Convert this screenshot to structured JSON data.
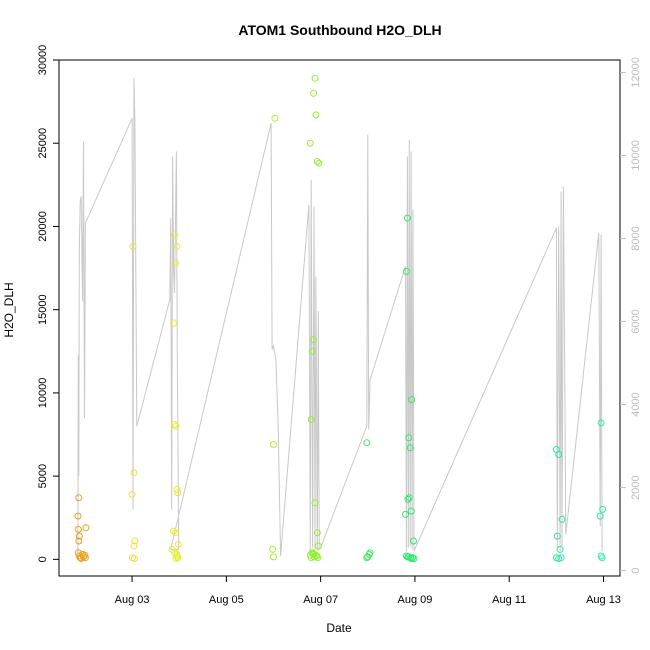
{
  "chart_data": {
    "type": "scatter",
    "title": "ATOM1 Southbound H2O_DLH",
    "xlabel": "Date",
    "ylabel": "H2O_DLH",
    "x_unit": "days since Aug 01",
    "xlim": [
      1.45,
      13.35
    ],
    "ylim": [
      -1000,
      30000
    ],
    "y2lim": [
      -130,
      12300
    ],
    "x_ticks": [
      {
        "value": 3,
        "label": "Aug 03"
      },
      {
        "value": 5,
        "label": "Aug 05"
      },
      {
        "value": 7,
        "label": "Aug 07"
      },
      {
        "value": 9,
        "label": "Aug 09"
      },
      {
        "value": 11,
        "label": "Aug 11"
      },
      {
        "value": 13,
        "label": "Aug 13"
      }
    ],
    "y_ticks": [
      0,
      5000,
      10000,
      15000,
      20000,
      25000,
      30000
    ],
    "y2_ticks": [
      0,
      2000,
      4000,
      6000,
      8000,
      10000,
      12000
    ],
    "colors": {
      "altitude_line": "#c8c8c8",
      "right_axis": "#bdbdbd"
    },
    "series": [
      {
        "color": "#e8a020",
        "points": [
          [
            1.87,
            3700
          ],
          [
            1.85,
            2600
          ],
          [
            1.86,
            1800
          ],
          [
            1.88,
            1400
          ],
          [
            1.87,
            1100
          ],
          [
            1.86,
            400
          ],
          [
            1.95,
            300
          ],
          [
            1.88,
            200
          ],
          [
            1.9,
            100
          ],
          [
            1.92,
            50
          ],
          [
            1.97,
            150
          ],
          [
            2.02,
            1900
          ],
          [
            2.0,
            250
          ],
          [
            2.01,
            100
          ]
        ]
      },
      {
        "color": "#f0e040",
        "points": [
          [
            3.02,
            18800
          ],
          [
            3.04,
            5200
          ],
          [
            3.0,
            3900
          ],
          [
            3.06,
            1100
          ],
          [
            3.04,
            800
          ],
          [
            3.01,
            100
          ],
          [
            3.05,
            50
          ]
        ]
      },
      {
        "color": "#e8ec30",
        "points": [
          [
            3.9,
            19500
          ],
          [
            3.95,
            18800
          ],
          [
            3.92,
            17800
          ],
          [
            3.88,
            14200
          ],
          [
            3.9,
            8100
          ],
          [
            3.93,
            8000
          ],
          [
            3.95,
            4200
          ],
          [
            3.97,
            4000
          ],
          [
            3.88,
            1700
          ],
          [
            3.92,
            1600
          ],
          [
            3.98,
            900
          ],
          [
            3.85,
            600
          ],
          [
            3.9,
            400
          ],
          [
            3.95,
            300
          ],
          [
            3.96,
            200
          ],
          [
            3.97,
            100
          ],
          [
            3.93,
            50
          ]
        ]
      },
      {
        "color": "#a8f030",
        "points": [
          [
            6.03,
            26500
          ],
          [
            6.0,
            6900
          ],
          [
            5.98,
            600
          ],
          [
            6.0,
            150
          ]
        ]
      },
      {
        "color": "#90f030",
        "points": [
          [
            6.88,
            28900
          ],
          [
            6.85,
            28000
          ],
          [
            6.9,
            26700
          ],
          [
            6.78,
            25000
          ],
          [
            6.93,
            23900
          ],
          [
            6.96,
            23800
          ],
          [
            6.85,
            13200
          ],
          [
            6.82,
            12500
          ],
          [
            6.8,
            8400
          ],
          [
            6.88,
            3400
          ],
          [
            6.93,
            1600
          ],
          [
            6.95,
            800
          ],
          [
            6.82,
            400
          ],
          [
            6.85,
            300
          ],
          [
            6.9,
            250
          ],
          [
            6.92,
            200
          ],
          [
            6.86,
            150
          ],
          [
            6.94,
            100
          ],
          [
            6.78,
            250
          ],
          [
            6.8,
            100
          ],
          [
            6.84,
            350
          ]
        ]
      },
      {
        "color": "#40e860",
        "points": [
          [
            7.98,
            7000
          ],
          [
            8.05,
            400
          ],
          [
            8.03,
            300
          ],
          [
            8.0,
            150
          ],
          [
            7.98,
            100
          ]
        ]
      },
      {
        "color": "#30e870",
        "points": [
          [
            8.84,
            20500
          ],
          [
            8.82,
            17300
          ],
          [
            8.93,
            9600
          ],
          [
            8.87,
            7300
          ],
          [
            8.9,
            6700
          ],
          [
            8.88,
            3700
          ],
          [
            8.85,
            3600
          ],
          [
            8.92,
            2900
          ],
          [
            8.8,
            2700
          ],
          [
            8.97,
            1100
          ],
          [
            8.82,
            200
          ],
          [
            8.85,
            150
          ],
          [
            8.9,
            100
          ],
          [
            8.92,
            50
          ],
          [
            8.95,
            100
          ],
          [
            8.98,
            50
          ],
          [
            8.87,
            150
          ]
        ]
      },
      {
        "color": "#30e8a0",
        "points": [
          [
            12.0,
            6600
          ],
          [
            12.05,
            6300
          ],
          [
            12.02,
            1400
          ],
          [
            12.12,
            2400
          ],
          [
            12.08,
            600
          ],
          [
            12.0,
            100
          ],
          [
            12.05,
            50
          ],
          [
            12.1,
            100
          ]
        ]
      },
      {
        "color": "#30e8b0",
        "points": [
          [
            12.95,
            8200
          ],
          [
            12.98,
            3000
          ],
          [
            12.93,
            2600
          ],
          [
            12.95,
            200
          ],
          [
            12.97,
            100
          ]
        ]
      }
    ],
    "altitude_line": [
      [
        1.85,
        300
      ],
      [
        1.86,
        12300
      ],
      [
        1.87,
        5000
      ],
      [
        1.88,
        18500
      ],
      [
        1.9,
        21500
      ],
      [
        1.92,
        21800
      ],
      [
        1.95,
        15500
      ],
      [
        1.97,
        25100
      ],
      [
        1.99,
        8500
      ],
      [
        2.01,
        20200
      ],
      [
        3.0,
        26500
      ],
      [
        3.02,
        3000
      ],
      [
        3.04,
        28900
      ],
      [
        3.06,
        26200
      ],
      [
        3.1,
        8000
      ],
      [
        3.8,
        15600
      ],
      [
        3.82,
        20500
      ],
      [
        3.84,
        3000
      ],
      [
        3.86,
        24200
      ],
      [
        3.88,
        17500
      ],
      [
        3.9,
        16000
      ],
      [
        3.92,
        20000
      ],
      [
        3.94,
        24500
      ],
      [
        3.96,
        12000
      ],
      [
        3.98,
        4000
      ],
      [
        3.99,
        600
      ],
      [
        3.82,
        600
      ],
      [
        5.95,
        26200
      ],
      [
        5.97,
        12600
      ],
      [
        6.0,
        12800
      ],
      [
        6.05,
        12000
      ],
      [
        6.1,
        8000
      ],
      [
        6.15,
        200
      ],
      [
        6.75,
        21300
      ],
      [
        6.78,
        300
      ],
      [
        6.8,
        22800
      ],
      [
        6.83,
        700
      ],
      [
        6.86,
        21200
      ],
      [
        6.88,
        500
      ],
      [
        6.9,
        17000
      ],
      [
        6.93,
        500
      ],
      [
        6.95,
        14900
      ],
      [
        6.97,
        600
      ],
      [
        7.0,
        700
      ],
      [
        7.98,
        8000
      ],
      [
        8.0,
        25500
      ],
      [
        8.02,
        7800
      ],
      [
        8.05,
        10800
      ],
      [
        8.8,
        17600
      ],
      [
        8.82,
        500
      ],
      [
        8.84,
        24200
      ],
      [
        8.86,
        700
      ],
      [
        8.88,
        25200
      ],
      [
        8.9,
        800
      ],
      [
        8.92,
        24500
      ],
      [
        8.94,
        600
      ],
      [
        8.96,
        21000
      ],
      [
        8.98,
        500
      ],
      [
        12.0,
        19900
      ],
      [
        12.02,
        700
      ],
      [
        12.05,
        20000
      ],
      [
        12.08,
        500
      ],
      [
        12.1,
        22100
      ],
      [
        12.12,
        800
      ],
      [
        12.15,
        22400
      ],
      [
        12.2,
        1500
      ],
      [
        12.9,
        19600
      ],
      [
        12.93,
        2000
      ],
      [
        12.95,
        19500
      ],
      [
        12.97,
        500
      ]
    ]
  }
}
